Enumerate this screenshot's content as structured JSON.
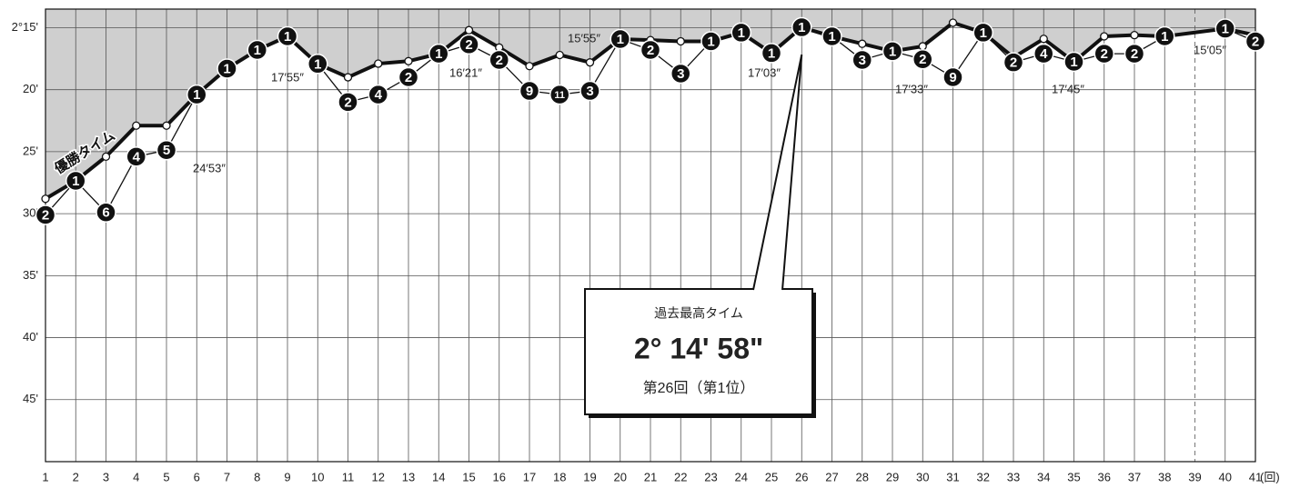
{
  "chart_data": {
    "type": "line",
    "x": [
      1,
      2,
      3,
      4,
      5,
      6,
      7,
      8,
      9,
      10,
      11,
      12,
      13,
      14,
      15,
      16,
      17,
      18,
      19,
      20,
      21,
      22,
      23,
      24,
      25,
      26,
      27,
      28,
      29,
      30,
      31,
      32,
      33,
      34,
      35,
      36,
      37,
      38,
      40,
      41
    ],
    "xlim": [
      1,
      41
    ],
    "xticks": [
      1,
      2,
      3,
      4,
      5,
      6,
      7,
      8,
      9,
      10,
      11,
      12,
      13,
      14,
      15,
      16,
      17,
      18,
      19,
      20,
      21,
      22,
      23,
      24,
      25,
      26,
      27,
      28,
      29,
      30,
      31,
      32,
      33,
      34,
      35,
      36,
      37,
      38,
      39,
      40,
      41
    ],
    "dashed_xticks": [
      39
    ],
    "x_unit": "(回)",
    "ylim": [
      13.5,
      50
    ],
    "y_inverted": true,
    "yticks": [
      {
        "value": 15,
        "label": "2°15'"
      },
      {
        "value": 20,
        "label": "20'"
      },
      {
        "value": 25,
        "label": "25'"
      },
      {
        "value": 30,
        "label": "30'"
      },
      {
        "value": 35,
        "label": "35'"
      },
      {
        "value": 40,
        "label": "40'"
      },
      {
        "value": 45,
        "label": "45'"
      }
    ],
    "grid": true,
    "series": [
      {
        "name": "優勝タイム",
        "color": "#111111",
        "fill_above": "#cfcfcf",
        "values": [
          28.8,
          27.35,
          25.4,
          22.9,
          22.9,
          20.4,
          18.3,
          16.8,
          15.7,
          17.92,
          19.0,
          17.9,
          17.7,
          17.1,
          15.2,
          16.6,
          18.1,
          17.2,
          17.8,
          15.92,
          16.0,
          16.1,
          16.1,
          15.4,
          17.05,
          14.97,
          15.7,
          16.3,
          16.9,
          16.5,
          14.6,
          15.4,
          17.4,
          15.9,
          17.75,
          15.7,
          15.6,
          15.7,
          15.08,
          15.6
        ]
      },
      {
        "color": "#111111",
        "values": [
          30.1,
          27.35,
          29.9,
          25.4,
          24.88,
          20.4,
          18.3,
          16.8,
          15.7,
          17.92,
          21.0,
          20.4,
          19.0,
          17.1,
          16.35,
          17.6,
          20.1,
          20.4,
          20.1,
          15.92,
          16.8,
          18.7,
          16.1,
          15.4,
          17.05,
          14.97,
          15.7,
          17.6,
          16.9,
          17.55,
          19.0,
          15.4,
          17.8,
          17.1,
          17.75,
          17.1,
          17.1,
          15.7,
          15.08,
          16.1
        ],
        "ranks": [
          2,
          1,
          6,
          4,
          5,
          1,
          1,
          1,
          1,
          1,
          2,
          4,
          2,
          1,
          2,
          2,
          9,
          11,
          3,
          1,
          2,
          3,
          1,
          1,
          1,
          1,
          1,
          3,
          1,
          2,
          9,
          1,
          2,
          4,
          1,
          2,
          2,
          1,
          1,
          2
        ]
      }
    ],
    "annotations": [
      {
        "x": 5,
        "text": "24′53″"
      },
      {
        "x": 10,
        "text": "17′55″"
      },
      {
        "x": 15,
        "text": "16′21″"
      },
      {
        "x": 20,
        "text": "15′55″"
      },
      {
        "x": 25,
        "text": "17′03″"
      },
      {
        "x": 30,
        "text": "17′33″"
      },
      {
        "x": 35,
        "text": "17′45″"
      },
      {
        "x": 40,
        "text": "15′05″"
      }
    ],
    "record": {
      "x": 26,
      "title": "過去最高タイム",
      "time": "2° 14' 58\"",
      "note": "第26回（第1位）"
    }
  }
}
